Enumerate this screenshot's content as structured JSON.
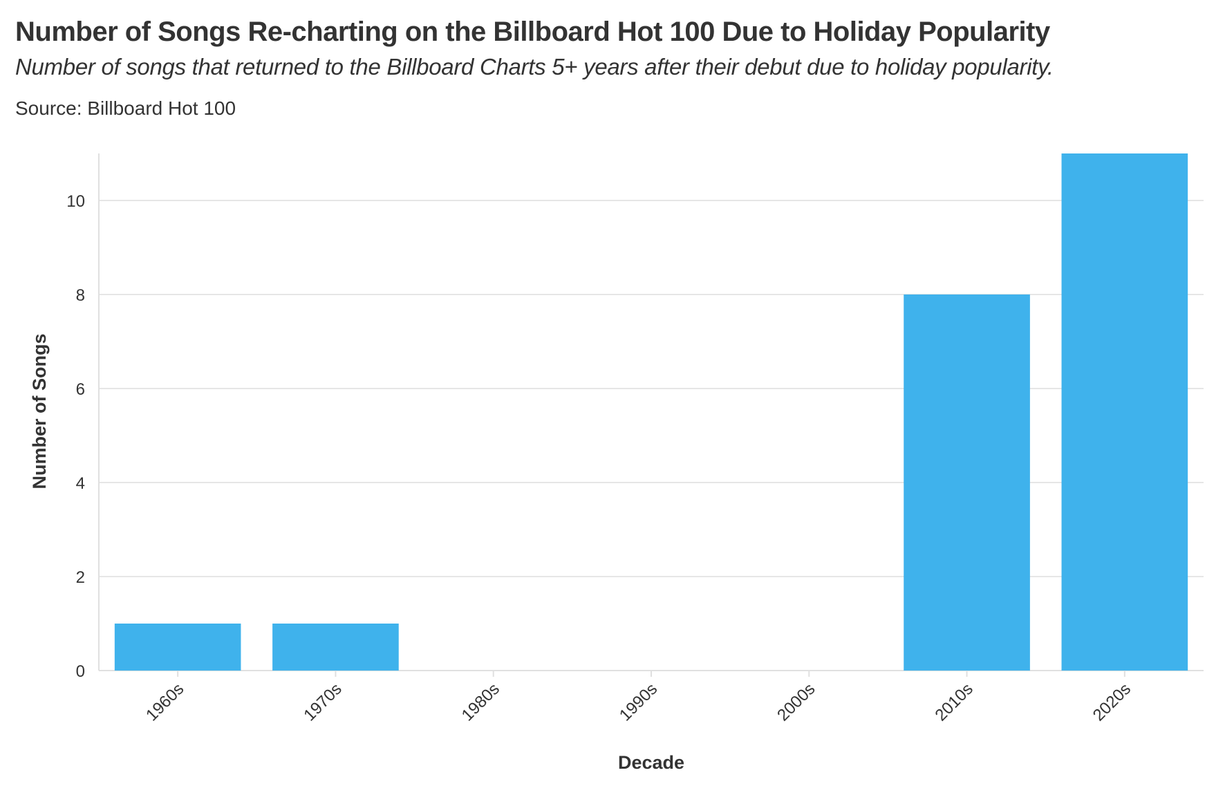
{
  "header": {
    "title": "Number of Songs Re-charting on the Billboard Hot 100 Due to Holiday Popularity",
    "subtitle": "Number of songs that returned to the Billboard Charts 5+ years after their debut due to holiday popularity.",
    "source": "Source: Billboard Hot 100"
  },
  "colors": {
    "bar": "#3fb2ec",
    "grid": "#e6e6e6",
    "axis": "#e0e0e0",
    "text": "#333333"
  },
  "chart_data": {
    "type": "bar",
    "categories": [
      "1960s",
      "1970s",
      "1980s",
      "1990s",
      "2000s",
      "2010s",
      "2020s"
    ],
    "values": [
      1,
      1,
      0,
      0,
      0,
      8,
      11
    ],
    "xlabel": "Decade",
    "ylabel": "Number of Songs",
    "ylim": [
      0,
      11
    ],
    "yticks": [
      0,
      2,
      4,
      6,
      8,
      10
    ],
    "grid": true,
    "legend": "none"
  }
}
